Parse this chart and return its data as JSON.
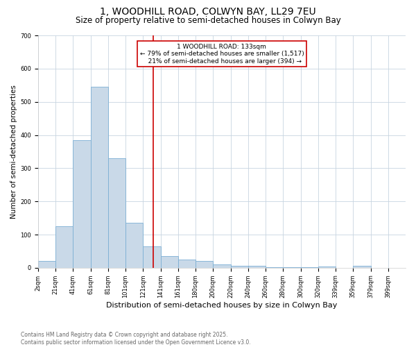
{
  "title": "1, WOODHILL ROAD, COLWYN BAY, LL29 7EU",
  "subtitle": "Size of property relative to semi-detached houses in Colwyn Bay",
  "xlabel": "Distribution of semi-detached houses by size in Colwyn Bay",
  "ylabel": "Number of semi-detached properties",
  "bar_color": "#c9d9e8",
  "bar_edge_color": "#7bafd4",
  "bin_labels": [
    "2sqm",
    "21sqm",
    "41sqm",
    "61sqm",
    "81sqm",
    "101sqm",
    "121sqm",
    "141sqm",
    "161sqm",
    "180sqm",
    "200sqm",
    "220sqm",
    "240sqm",
    "260sqm",
    "280sqm",
    "300sqm",
    "320sqm",
    "339sqm",
    "359sqm",
    "379sqm",
    "399sqm"
  ],
  "bin_edges": [
    0,
    1,
    2,
    3,
    4,
    5,
    6,
    7,
    8,
    9,
    10,
    11,
    12,
    13,
    14,
    15,
    16,
    17,
    18,
    19,
    20
  ],
  "bar_heights": [
    20,
    125,
    385,
    545,
    330,
    135,
    65,
    35,
    25,
    20,
    10,
    5,
    5,
    2,
    2,
    1,
    3,
    0,
    5,
    0
  ],
  "vline_x": 6.6,
  "vline_color": "#cc0000",
  "annotation_text": "1 WOODHILL ROAD: 133sqm\n← 79% of semi-detached houses are smaller (1,517)\n   21% of semi-detached houses are larger (394) →",
  "annotation_box_color": "#ffffff",
  "annotation_box_edge": "#cc0000",
  "ylim": [
    0,
    700
  ],
  "grid_color": "#c8d4e0",
  "footnote": "Contains HM Land Registry data © Crown copyright and database right 2025.\nContains public sector information licensed under the Open Government Licence v3.0.",
  "title_fontsize": 10,
  "subtitle_fontsize": 8.5,
  "ylabel_fontsize": 7.5,
  "xlabel_fontsize": 8,
  "tick_fontsize": 6,
  "footnote_fontsize": 5.5,
  "annot_fontsize": 6.5
}
